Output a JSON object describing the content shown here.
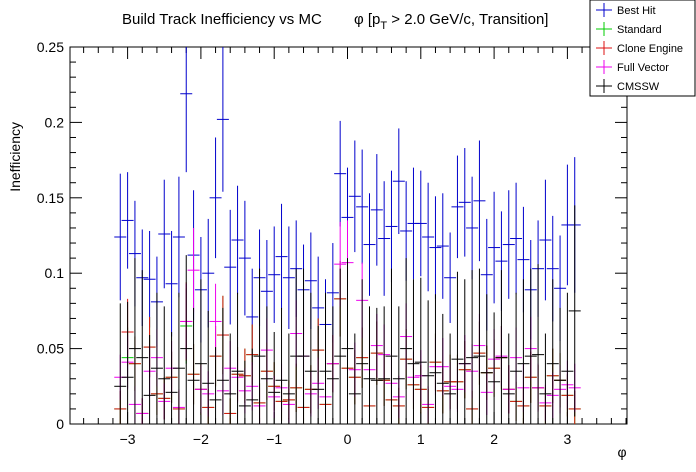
{
  "chart_data": {
    "type": "scatter",
    "title_main": "Build Track Inefficiency vs MC",
    "title_phi": "φ [p",
    "title_sub": "T",
    "title_rest": " > 2.0 GeV/c, Transition]",
    "xlabel": "φ",
    "ylabel": "Inefficiency",
    "xlim": [
      -3.85,
      3.85
    ],
    "ylim": [
      0,
      0.25
    ],
    "x_ticks": [
      -3,
      -2,
      -1,
      0,
      1,
      2,
      3
    ],
    "x_tick_labels": [
      "−3",
      "−2",
      "−1",
      "0",
      "1",
      "2",
      "3"
    ],
    "y_ticks": [
      0,
      0.05,
      0.1,
      0.15,
      0.2,
      0.25
    ],
    "y_tick_labels": [
      "0",
      "0.05",
      "0.1",
      "0.15",
      "0.2",
      "0.25"
    ],
    "legend_position": "top-right",
    "x": [
      -3.1,
      -3.0,
      -2.9,
      -2.8,
      -2.7,
      -2.6,
      -2.5,
      -2.4,
      -2.3,
      -2.2,
      -2.1,
      -2.0,
      -1.9,
      -1.8,
      -1.7,
      -1.6,
      -1.5,
      -1.4,
      -1.3,
      -1.2,
      -1.1,
      -1.0,
      -0.9,
      -0.8,
      -0.7,
      -0.6,
      -0.5,
      -0.4,
      -0.3,
      -0.2,
      -0.1,
      0.0,
      0.1,
      0.2,
      0.3,
      0.4,
      0.5,
      0.6,
      0.7,
      0.8,
      0.9,
      1.0,
      1.1,
      1.2,
      1.3,
      1.4,
      1.5,
      1.6,
      1.7,
      1.8,
      1.9,
      2.0,
      2.1,
      2.2,
      2.3,
      2.4,
      2.5,
      2.6,
      2.7,
      2.8,
      2.9,
      3.0,
      3.1
    ],
    "series": [
      {
        "name": "Best Hit",
        "color": "#0000cc",
        "values": [
          0.124,
          0.135,
          0.113,
          0.097,
          0.096,
          0.081,
          0.126,
          0.093,
          0.124,
          0.219,
          0.112,
          0.089,
          0.1,
          0.15,
          0.202,
          0.104,
          0.122,
          0.11,
          0.071,
          0.097,
          0.088,
          0.099,
          0.111,
          0.097,
          0.103,
          0.089,
          0.095,
          0.077,
          0.066,
          0.087,
          0.166,
          0.137,
          0.151,
          0.144,
          0.119,
          0.142,
          0.123,
          0.131,
          0.161,
          0.128,
          0.133,
          0.133,
          0.124,
          0.117,
          0.118,
          0.097,
          0.144,
          0.147,
          0.13,
          0.148,
          0.099,
          0.117,
          0.108,
          0.119,
          0.123,
          0.109,
          0.089,
          0.103,
          0.122,
          0.103,
          0.09,
          0.132,
          0.132
        ],
        "errors": [
          0.042,
          0.032,
          0.035,
          0.032,
          0.032,
          0.03,
          0.036,
          0.035,
          0.04,
          0.052,
          0.043,
          0.035,
          0.036,
          0.04,
          0.048,
          0.038,
          0.036,
          0.038,
          0.032,
          0.032,
          0.034,
          0.032,
          0.035,
          0.034,
          0.032,
          0.03,
          0.032,
          0.034,
          0.03,
          0.033,
          0.035,
          0.033,
          0.037,
          0.038,
          0.034,
          0.037,
          0.038,
          0.037,
          0.035,
          0.033,
          0.037,
          0.035,
          0.036,
          0.034,
          0.035,
          0.03,
          0.034,
          0.036,
          0.034,
          0.04,
          0.037,
          0.037,
          0.033,
          0.036,
          0.037,
          0.035,
          0.033,
          0.032,
          0.04,
          0.035,
          0.035,
          0.04,
          0.045
        ]
      },
      {
        "name": "Standard",
        "color": "#00cc00",
        "values": [
          0.01,
          0.044,
          0.04,
          0.007,
          0.051,
          0.02,
          0.017,
          0.031,
          0.01,
          0.065,
          0.033,
          0.023,
          0.011,
          0.045,
          0.059,
          0.007,
          0.033,
          0.032,
          0.046,
          0.014,
          0.035,
          0.025,
          0.015,
          0.016,
          0.024,
          0.011,
          0.023,
          0.049,
          0.013,
          0.04,
          0.083,
          0.037,
          0.031,
          0.044,
          0.012,
          0.047,
          0.029,
          0.016,
          0.012,
          0.043,
          0.026,
          0.023,
          0.011,
          0.041,
          0.022,
          0.028,
          0.028,
          0.036,
          0.01,
          0.047,
          0.034,
          0.037,
          0.044,
          0.023,
          0.015,
          0.012,
          0.031,
          0.024,
          0.012,
          0.032,
          0.029,
          0.019,
          0.01
        ],
        "errors": [
          0.012,
          0.02,
          0.018,
          0.01,
          0.02,
          0.014,
          0.014,
          0.017,
          0.012,
          0.025,
          0.02,
          0.017,
          0.012,
          0.02,
          0.026,
          0.01,
          0.018,
          0.018,
          0.02,
          0.013,
          0.019,
          0.016,
          0.013,
          0.013,
          0.016,
          0.012,
          0.016,
          0.021,
          0.012,
          0.019,
          0.025,
          0.02,
          0.018,
          0.02,
          0.012,
          0.021,
          0.017,
          0.013,
          0.012,
          0.02,
          0.016,
          0.016,
          0.012,
          0.019,
          0.015,
          0.018,
          0.018,
          0.019,
          0.012,
          0.021,
          0.018,
          0.019,
          0.021,
          0.016,
          0.013,
          0.012,
          0.017,
          0.015,
          0.012,
          0.018,
          0.018,
          0.014,
          0.012
        ]
      },
      {
        "name": "Clone Engine",
        "color": "#dd1111",
        "values": [
          0.01,
          0.061,
          0.04,
          0.007,
          0.051,
          0.02,
          0.017,
          0.031,
          0.01,
          0.068,
          0.033,
          0.023,
          0.011,
          0.045,
          0.059,
          0.007,
          0.033,
          0.032,
          0.046,
          0.014,
          0.035,
          0.025,
          0.015,
          0.016,
          0.024,
          0.011,
          0.023,
          0.049,
          0.013,
          0.04,
          0.083,
          0.037,
          0.031,
          0.044,
          0.012,
          0.047,
          0.029,
          0.016,
          0.012,
          0.043,
          0.026,
          0.023,
          0.011,
          0.041,
          0.022,
          0.028,
          0.028,
          0.036,
          0.01,
          0.047,
          0.034,
          0.037,
          0.044,
          0.023,
          0.015,
          0.012,
          0.031,
          0.024,
          0.012,
          0.032,
          0.029,
          0.019,
          0.01
        ],
        "errors": [
          0.012,
          0.022,
          0.018,
          0.01,
          0.02,
          0.014,
          0.014,
          0.017,
          0.012,
          0.026,
          0.02,
          0.017,
          0.012,
          0.02,
          0.026,
          0.01,
          0.018,
          0.018,
          0.02,
          0.013,
          0.019,
          0.016,
          0.013,
          0.013,
          0.016,
          0.012,
          0.016,
          0.021,
          0.012,
          0.019,
          0.025,
          0.02,
          0.018,
          0.02,
          0.012,
          0.021,
          0.017,
          0.013,
          0.012,
          0.02,
          0.016,
          0.016,
          0.012,
          0.019,
          0.015,
          0.018,
          0.018,
          0.019,
          0.012,
          0.021,
          0.018,
          0.019,
          0.021,
          0.016,
          0.013,
          0.012,
          0.017,
          0.015,
          0.012,
          0.018,
          0.018,
          0.014,
          0.012
        ]
      },
      {
        "name": "Full Vector",
        "color": "#ee00ee",
        "values": [
          0.031,
          0.041,
          0.013,
          0.007,
          0.035,
          0.044,
          0.015,
          0.037,
          0.011,
          0.068,
          0.102,
          0.023,
          0.02,
          0.068,
          0.022,
          0.037,
          0.031,
          0.022,
          0.025,
          0.012,
          0.049,
          0.018,
          0.024,
          0.013,
          0.06,
          0.045,
          0.02,
          0.027,
          0.018,
          0.04,
          0.106,
          0.107,
          0.036,
          0.082,
          0.036,
          0.052,
          0.046,
          0.027,
          0.018,
          0.058,
          0.031,
          0.032,
          0.013,
          0.038,
          0.038,
          0.025,
          0.023,
          0.04,
          0.035,
          0.052,
          0.021,
          0.043,
          0.045,
          0.023,
          0.044,
          0.024,
          0.05,
          0.024,
          0.014,
          0.019,
          0.023,
          0.026,
          0.024
        ],
        "errors": [
          0.015,
          0.018,
          0.012,
          0.01,
          0.017,
          0.019,
          0.012,
          0.018,
          0.012,
          0.025,
          0.028,
          0.016,
          0.015,
          0.025,
          0.016,
          0.018,
          0.017,
          0.015,
          0.016,
          0.012,
          0.021,
          0.014,
          0.016,
          0.012,
          0.022,
          0.02,
          0.015,
          0.017,
          0.014,
          0.019,
          0.028,
          0.028,
          0.018,
          0.025,
          0.018,
          0.021,
          0.02,
          0.017,
          0.014,
          0.022,
          0.017,
          0.017,
          0.012,
          0.019,
          0.019,
          0.016,
          0.015,
          0.019,
          0.018,
          0.021,
          0.015,
          0.02,
          0.02,
          0.016,
          0.02,
          0.016,
          0.021,
          0.016,
          0.012,
          0.015,
          0.016,
          0.016,
          0.016
        ]
      },
      {
        "name": "CMSSW",
        "color": "#000000",
        "values": [
          0.025,
          0.031,
          0.05,
          0.044,
          0.019,
          0.037,
          0.03,
          0.021,
          0.037,
          0.05,
          0.029,
          0.04,
          0.027,
          0.016,
          0.029,
          0.02,
          0.035,
          0.012,
          0.016,
          0.045,
          0.03,
          0.021,
          0.029,
          0.02,
          0.045,
          0.045,
          0.035,
          0.023,
          0.035,
          0.03,
          0.045,
          0.05,
          0.02,
          0.04,
          0.03,
          0.029,
          0.03,
          0.045,
          0.03,
          0.05,
          0.04,
          0.041,
          0.032,
          0.034,
          0.027,
          0.02,
          0.043,
          0.04,
          0.044,
          0.045,
          0.034,
          0.028,
          0.044,
          0.02,
          0.035,
          0.04,
          0.045,
          0.046,
          0.02,
          0.04,
          0.029,
          0.035,
          0.075
        ],
        "errors": [
          0.055,
          0.05,
          0.06,
          0.058,
          0.04,
          0.05,
          0.048,
          0.04,
          0.05,
          0.062,
          0.048,
          0.056,
          0.048,
          0.035,
          0.048,
          0.04,
          0.052,
          0.03,
          0.034,
          0.058,
          0.048,
          0.04,
          0.048,
          0.04,
          0.058,
          0.058,
          0.052,
          0.042,
          0.052,
          0.048,
          0.058,
          0.06,
          0.04,
          0.056,
          0.048,
          0.048,
          0.048,
          0.058,
          0.048,
          0.06,
          0.056,
          0.056,
          0.05,
          0.052,
          0.046,
          0.04,
          0.058,
          0.056,
          0.058,
          0.058,
          0.052,
          0.046,
          0.058,
          0.04,
          0.052,
          0.056,
          0.058,
          0.06,
          0.04,
          0.056,
          0.048,
          0.052,
          0.07
        ]
      }
    ]
  }
}
